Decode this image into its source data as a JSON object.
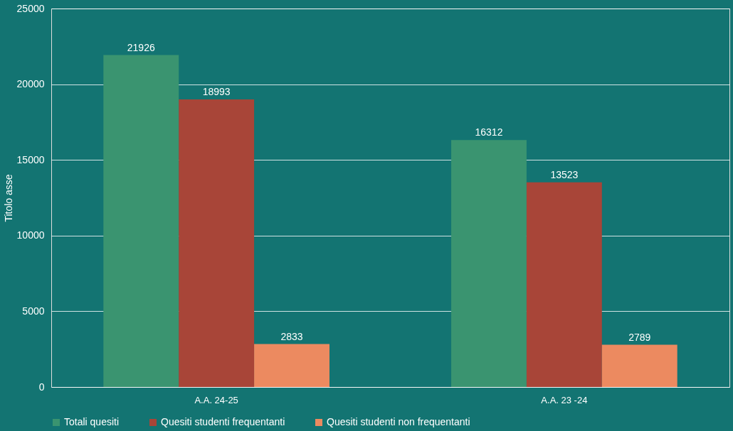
{
  "chart_data": {
    "type": "bar",
    "ylabel": "Titolo asse",
    "categories": [
      "A.A. 24-25",
      "A.A. 23 -24"
    ],
    "series": [
      {
        "name": "Totali quesiti",
        "color": "#3a9470",
        "values": [
          21926,
          16312
        ]
      },
      {
        "name": "Quesiti studenti frequentanti",
        "color": "#a84538",
        "values": [
          18993,
          13523
        ]
      },
      {
        "name": "Quesiti studenti non frequentanti",
        "color": "#ec8a60",
        "values": [
          2833,
          2789
        ]
      }
    ],
    "ylim": [
      0,
      25000
    ],
    "yticks": [
      0,
      5000,
      10000,
      15000,
      20000,
      25000
    ],
    "grid": "y",
    "legend": "bottom",
    "data_labels": true
  }
}
